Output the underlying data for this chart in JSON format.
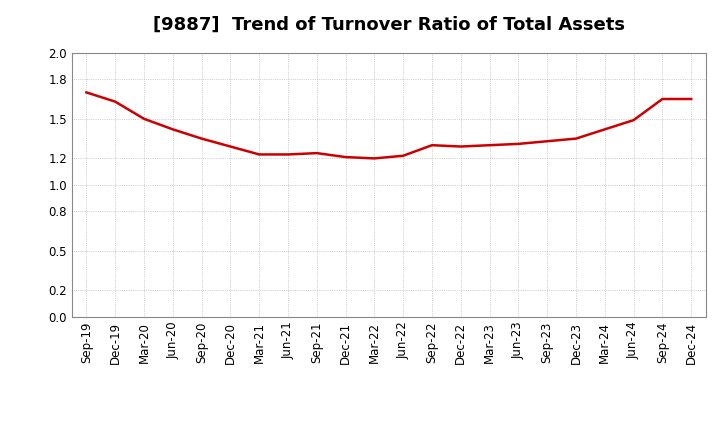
{
  "title": "[9887]  Trend of Turnover Ratio of Total Assets",
  "x_labels": [
    "Sep-19",
    "Dec-19",
    "Mar-20",
    "Jun-20",
    "Sep-20",
    "Dec-20",
    "Mar-21",
    "Jun-21",
    "Sep-21",
    "Dec-21",
    "Mar-22",
    "Jun-22",
    "Sep-22",
    "Dec-22",
    "Mar-23",
    "Jun-23",
    "Sep-23",
    "Dec-23",
    "Mar-24",
    "Jun-24",
    "Sep-24",
    "Dec-24"
  ],
  "y_values": [
    1.7,
    1.63,
    1.5,
    1.42,
    1.35,
    1.29,
    1.23,
    1.23,
    1.24,
    1.21,
    1.2,
    1.22,
    1.3,
    1.29,
    1.3,
    1.31,
    1.33,
    1.35,
    1.42,
    1.49,
    1.65,
    1.65
  ],
  "line_color": "#cc0000",
  "line_width": 1.8,
  "ylim": [
    0.0,
    2.0
  ],
  "yticks": [
    0.0,
    0.2,
    0.5,
    0.8,
    1.0,
    1.2,
    1.5,
    1.8,
    2.0
  ],
  "background_color": "#ffffff",
  "grid_color": "#aaaaaa",
  "title_fontsize": 13,
  "tick_fontsize": 8.5
}
